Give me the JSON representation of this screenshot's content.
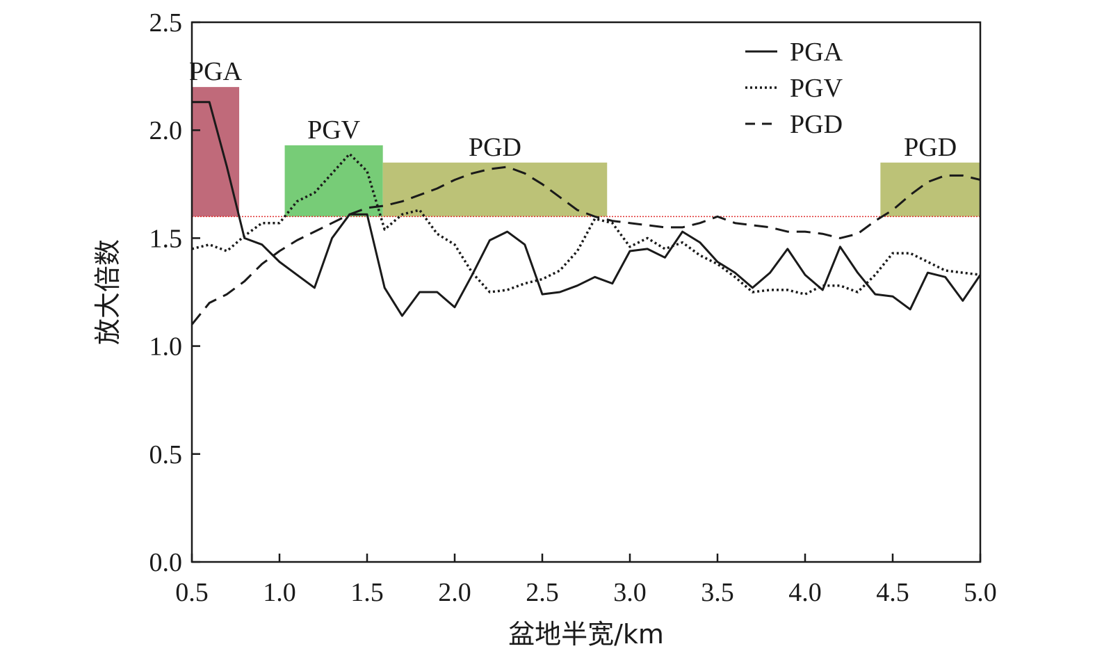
{
  "chart_data": {
    "type": "line",
    "title": "",
    "xlabel": "盆地半宽/km",
    "ylabel": "放大倍数",
    "xlim": [
      0.5,
      5.0
    ],
    "ylim": [
      0.0,
      2.5
    ],
    "x_ticks": [
      "0.5",
      "1.0",
      "1.5",
      "2.0",
      "2.5",
      "3.0",
      "3.5",
      "4.0",
      "4.5",
      "5.0"
    ],
    "y_ticks": [
      "0.0",
      "0.5",
      "1.0",
      "1.5",
      "2.0",
      "2.5"
    ],
    "grid": false,
    "legend_position": "top-right",
    "threshold": {
      "y": 1.6,
      "color": "#e03030"
    },
    "regions": [
      {
        "label": "PGA",
        "x0": 0.5,
        "x1": 0.77,
        "y0": 1.6,
        "y1": 2.2,
        "color": "#c06a7a"
      },
      {
        "label": "PGV",
        "x0": 1.03,
        "x1": 1.59,
        "y0": 1.6,
        "y1": 1.93,
        "color": "#77cc77"
      },
      {
        "label": "PGD",
        "x0": 1.59,
        "x1": 2.87,
        "y0": 1.6,
        "y1": 1.85,
        "color": "#bcc277"
      },
      {
        "label": "PGD",
        "x0": 4.43,
        "x1": 5.0,
        "y0": 1.6,
        "y1": 1.85,
        "color": "#bcc277"
      }
    ],
    "series": [
      {
        "name": "PGA",
        "style": "solid",
        "x": [
          0.5,
          0.6,
          0.7,
          0.8,
          0.9,
          1.0,
          1.1,
          1.2,
          1.3,
          1.4,
          1.5,
          1.6,
          1.7,
          1.8,
          1.9,
          2.0,
          2.1,
          2.2,
          2.3,
          2.4,
          2.5,
          2.6,
          2.7,
          2.8,
          2.9,
          3.0,
          3.1,
          3.2,
          3.3,
          3.4,
          3.5,
          3.6,
          3.7,
          3.8,
          3.9,
          4.0,
          4.1,
          4.2,
          4.3,
          4.4,
          4.5,
          4.6,
          4.7,
          4.8,
          4.9,
          5.0
        ],
        "y": [
          2.13,
          2.13,
          1.83,
          1.5,
          1.47,
          1.39,
          1.33,
          1.27,
          1.5,
          1.61,
          1.61,
          1.27,
          1.14,
          1.25,
          1.25,
          1.18,
          1.33,
          1.49,
          1.53,
          1.47,
          1.24,
          1.25,
          1.28,
          1.32,
          1.29,
          1.44,
          1.45,
          1.41,
          1.53,
          1.48,
          1.39,
          1.34,
          1.27,
          1.34,
          1.45,
          1.33,
          1.26,
          1.46,
          1.34,
          1.24,
          1.23,
          1.17,
          1.34,
          1.32,
          1.21,
          1.33
        ]
      },
      {
        "name": "PGV",
        "style": "dotted",
        "x": [
          0.5,
          0.6,
          0.7,
          0.8,
          0.9,
          1.0,
          1.1,
          1.2,
          1.3,
          1.4,
          1.5,
          1.6,
          1.7,
          1.8,
          1.9,
          2.0,
          2.1,
          2.2,
          2.3,
          2.4,
          2.5,
          2.6,
          2.7,
          2.8,
          2.9,
          3.0,
          3.1,
          3.2,
          3.3,
          3.4,
          3.5,
          3.6,
          3.7,
          3.8,
          3.9,
          4.0,
          4.1,
          4.2,
          4.3,
          4.4,
          4.5,
          4.6,
          4.7,
          4.8,
          4.9,
          5.0
        ],
        "y": [
          1.45,
          1.47,
          1.44,
          1.51,
          1.57,
          1.57,
          1.67,
          1.71,
          1.8,
          1.89,
          1.81,
          1.54,
          1.61,
          1.63,
          1.52,
          1.47,
          1.34,
          1.25,
          1.26,
          1.29,
          1.31,
          1.35,
          1.44,
          1.59,
          1.57,
          1.46,
          1.5,
          1.45,
          1.48,
          1.42,
          1.38,
          1.32,
          1.25,
          1.26,
          1.26,
          1.24,
          1.28,
          1.28,
          1.25,
          1.33,
          1.43,
          1.43,
          1.39,
          1.35,
          1.34,
          1.33
        ]
      },
      {
        "name": "PGD",
        "style": "dashed",
        "x": [
          0.5,
          0.6,
          0.7,
          0.8,
          0.9,
          1.0,
          1.1,
          1.2,
          1.3,
          1.4,
          1.5,
          1.6,
          1.7,
          1.8,
          1.9,
          2.0,
          2.1,
          2.2,
          2.3,
          2.4,
          2.5,
          2.6,
          2.7,
          2.8,
          2.9,
          3.0,
          3.1,
          3.2,
          3.3,
          3.4,
          3.5,
          3.6,
          3.7,
          3.8,
          3.9,
          4.0,
          4.1,
          4.2,
          4.3,
          4.4,
          4.5,
          4.6,
          4.7,
          4.8,
          4.9,
          5.0
        ],
        "y": [
          1.1,
          1.2,
          1.24,
          1.3,
          1.38,
          1.44,
          1.49,
          1.53,
          1.57,
          1.61,
          1.64,
          1.65,
          1.67,
          1.7,
          1.73,
          1.77,
          1.8,
          1.82,
          1.83,
          1.8,
          1.75,
          1.69,
          1.63,
          1.6,
          1.58,
          1.57,
          1.56,
          1.55,
          1.55,
          1.57,
          1.6,
          1.57,
          1.56,
          1.55,
          1.53,
          1.53,
          1.52,
          1.5,
          1.52,
          1.58,
          1.63,
          1.7,
          1.76,
          1.79,
          1.79,
          1.77
        ]
      }
    ]
  }
}
